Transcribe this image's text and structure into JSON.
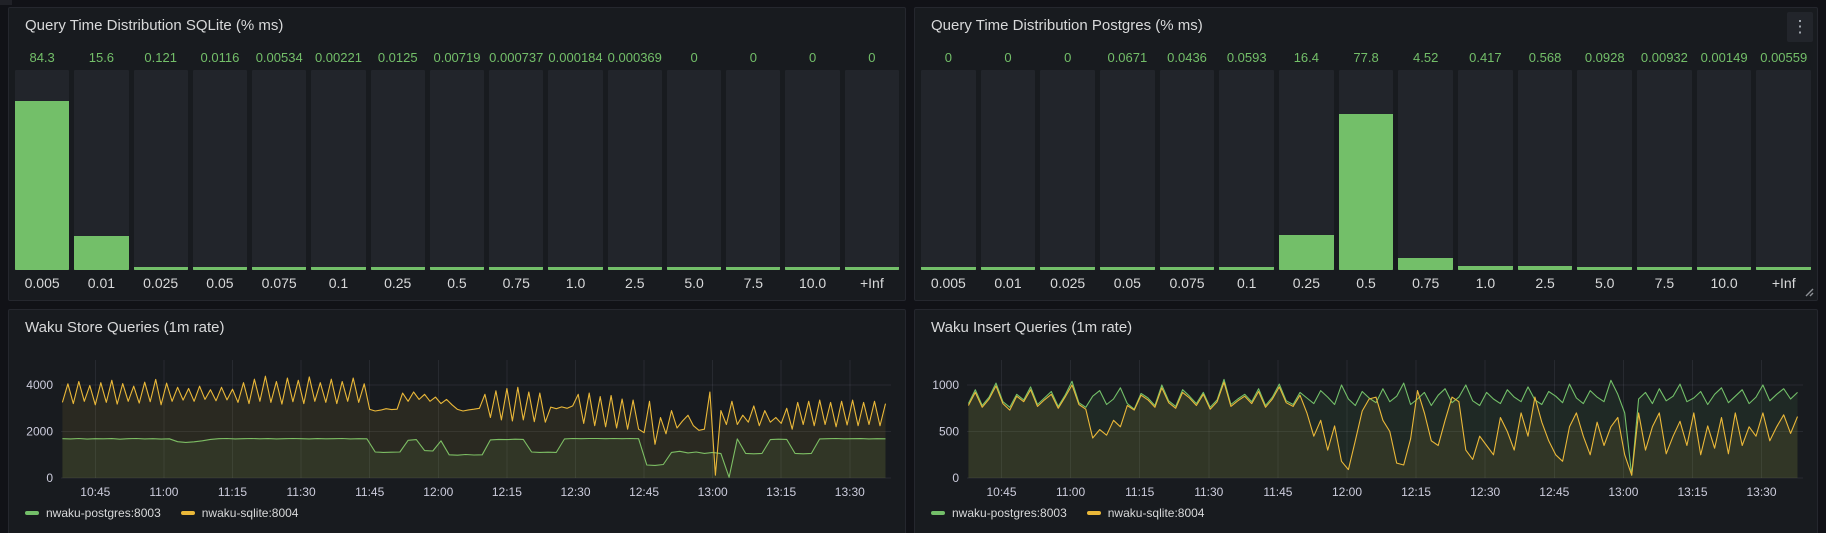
{
  "colors": {
    "green": "#73bf69",
    "yellow": "#eab839",
    "panel_bg": "#181b1f",
    "page_bg": "#111217",
    "text": "#d8d9da",
    "axis_text": "#ccccdc"
  },
  "kebab_menu": {
    "glyph": "⋮"
  },
  "panels": {
    "sqlite_dist": {
      "title": "Query Time Distribution SQLite (% ms)",
      "chart_data": {
        "type": "bar",
        "title": "Query Time Distribution SQLite (% ms)",
        "categories": [
          "0.005",
          "0.01",
          "0.025",
          "0.05",
          "0.075",
          "0.1",
          "0.25",
          "0.5",
          "0.75",
          "1.0",
          "2.5",
          "5.0",
          "7.5",
          "10.0",
          "+Inf"
        ],
        "values": [
          84.3,
          15.6,
          0.121,
          0.0116,
          0.00534,
          0.00221,
          0.0125,
          0.00719,
          0.000737,
          0.000184,
          0.000369,
          0,
          0,
          0,
          0
        ],
        "display_values": [
          "84.3",
          "15.6",
          "0.121",
          "0.0116",
          "0.00534",
          "0.00221",
          "0.0125",
          "0.00719",
          "0.000737",
          "0.000184",
          "0.000369",
          "0",
          "0",
          "0",
          "0"
        ],
        "ylim": [
          0,
          100
        ],
        "xlabel": "",
        "ylabel": ""
      }
    },
    "postgres_dist": {
      "title": "Query Time Distribution Postgres (% ms)",
      "chart_data": {
        "type": "bar",
        "title": "Query Time Distribution Postgres (% ms)",
        "categories": [
          "0.005",
          "0.01",
          "0.025",
          "0.05",
          "0.075",
          "0.1",
          "0.25",
          "0.5",
          "0.75",
          "1.0",
          "2.5",
          "5.0",
          "7.5",
          "10.0",
          "+Inf"
        ],
        "values": [
          0,
          0,
          0,
          0.0671,
          0.0436,
          0.0593,
          16.4,
          77.8,
          4.52,
          0.417,
          0.568,
          0.0928,
          0.00932,
          0.00149,
          0.00559
        ],
        "display_values": [
          "0",
          "0",
          "0",
          "0.0671",
          "0.0436",
          "0.0593",
          "16.4",
          "77.8",
          "4.52",
          "0.417",
          "0.568",
          "0.0928",
          "0.00932",
          "0.00149",
          "0.00559"
        ],
        "ylim": [
          0,
          100
        ],
        "xlabel": "",
        "ylabel": ""
      }
    },
    "store": {
      "title": "Waku Store Queries (1m rate)",
      "legend": [
        {
          "label": "nwaku-postgres:8003",
          "color": "#73bf69"
        },
        {
          "label": "nwaku-sqlite:8004",
          "color": "#eab839"
        }
      ],
      "chart_data": {
        "type": "line",
        "title": "Waku Store Queries (1m rate)",
        "y_ticks": [
          0,
          2000,
          4000
        ],
        "x_tick_labels": [
          "10:45",
          "11:00",
          "11:15",
          "11:30",
          "11:45",
          "12:00",
          "12:15",
          "12:30",
          "12:45",
          "13:00",
          "13:15",
          "13:30"
        ],
        "x_tick_minutes": [
          645,
          660,
          675,
          690,
          705,
          720,
          735,
          750,
          765,
          780,
          795,
          810
        ],
        "x_range": [
          637.5,
          819
        ],
        "grid": true,
        "legend_position": "bottom",
        "series": [
          {
            "name": "nwaku-postgres:8003",
            "color": "#73bf69",
            "t0": 637.8,
            "step": 1.8,
            "values": [
              1690,
              1680,
              1700,
              1675,
              1690,
              1685,
              1695,
              1670,
              1690,
              1700,
              1680,
              1690,
              1675,
              1685,
              1560,
              1530,
              1555,
              1600,
              1660,
              1690,
              1700,
              1680,
              1690,
              1700,
              1685,
              1695,
              1680,
              1690,
              1700,
              1690,
              1680,
              1695,
              1685,
              1690,
              1700,
              1680,
              1690,
              1685,
              1120,
              1100,
              1110,
              1120,
              1620,
              1650,
              1180,
              1160,
              1600,
              1000,
              980,
              1010,
              990,
              1000,
              1640,
              1660,
              1650,
              1670,
              1660,
              1120,
              1100,
              1110,
              1100,
              1680,
              1700,
              1690,
              1700,
              1700,
              1690,
              1700,
              1690,
              1700,
              1690,
              560,
              540,
              580,
              1100,
              1150,
              1080,
              1120,
              1060,
              1100,
              1050,
              30,
              1680,
              1060,
              1040,
              1060,
              1650,
              1670,
              1660,
              1060,
              1040,
              1060,
              1680,
              1690,
              1700,
              1685,
              1690,
              1695,
              1680,
              1690,
              1685
            ]
          },
          {
            "name": "nwaku-sqlite:8004",
            "color": "#eab839",
            "t0": 637.8,
            "step": 1.2,
            "values": [
              3250,
              4050,
              3200,
              4150,
              3300,
              3980,
              3150,
              4100,
              3250,
              4200,
              3180,
              4060,
              3300,
              3950,
              3220,
              4120,
              3280,
              4240,
              3150,
              4080,
              3300,
              3900,
              3350,
              3850,
              3300,
              3950,
              3380,
              3800,
              3320,
              3900,
              3360,
              3820,
              3250,
              4100,
              3200,
              4250,
              3300,
              4380,
              3250,
              4150,
              3180,
              4300,
              3280,
              4200,
              3200,
              4350,
              3300,
              4100,
              3250,
              4250,
              3200,
              4150,
              3300,
              4300,
              3250,
              4050,
              2950,
              2880,
              2920,
              2980,
              2940,
              2960,
              3650,
              3300,
              3700,
              3380,
              3600,
              3300,
              3480,
              3200,
              3380,
              3150,
              2950,
              2880,
              2930,
              2960,
              3000,
              3600,
              2600,
              3750,
              2500,
              3850,
              2450,
              3900,
              2500,
              3700,
              2420,
              3650,
              2400,
              3050,
              2980,
              3060,
              3000,
              3100,
              3600,
              2350,
              3650,
              2250,
              3500,
              2200,
              3550,
              2150,
              3400,
              2100,
              3350,
              2100,
              1950,
              3300,
              1450,
              2600,
              1900,
              2900,
              2150,
              2450,
              2700,
              2250,
              2050,
              2100,
              3700,
              120,
              2900,
              2300,
              3300,
              2300,
              2700,
              2400,
              3100,
              2250,
              2900,
              2400,
              2600,
              2350,
              3000,
              2100,
              3250,
              2300,
              3300,
              2250,
              3350,
              2300,
              3250,
              2200,
              3300,
              2280,
              3350,
              2250,
              3250,
              2300,
              3300,
              2250,
              3200
            ]
          }
        ]
      }
    },
    "insert": {
      "title": "Waku Insert Queries (1m rate)",
      "legend": [
        {
          "label": "nwaku-postgres:8003",
          "color": "#73bf69"
        },
        {
          "label": "nwaku-sqlite:8004",
          "color": "#eab839"
        }
      ],
      "chart_data": {
        "type": "line",
        "title": "Waku Insert Queries (1m rate)",
        "y_ticks": [
          0,
          500,
          1000
        ],
        "x_tick_labels": [
          "10:45",
          "11:00",
          "11:15",
          "11:30",
          "11:45",
          "12:00",
          "12:15",
          "12:30",
          "12:45",
          "13:00",
          "13:15",
          "13:30"
        ],
        "x_tick_minutes": [
          645,
          660,
          675,
          690,
          705,
          720,
          735,
          750,
          765,
          780,
          795,
          810
        ],
        "x_range": [
          637.5,
          819
        ],
        "grid": true,
        "legend_position": "bottom",
        "series": [
          {
            "name": "nwaku-postgres:8003",
            "color": "#73bf69",
            "t0": 637.8,
            "step": 1.5,
            "values": [
              800,
              950,
              780,
              870,
              1020,
              820,
              760,
              900,
              840,
              980,
              790,
              860,
              930,
              770,
              890,
              1040,
              810,
              760,
              880,
              940,
              790,
              850,
              970,
              800,
              740,
              910,
              860,
              780,
              1000,
              830,
              770,
              950,
              880,
              800,
              920,
              760,
              840,
              1060,
              790,
              850,
              900,
              820,
              960,
              780,
              870,
              1010,
              830,
              790,
              920,
              860,
              800,
              940,
              870,
              790,
              1000,
              850,
              780,
              930,
              860,
              810,
              960,
              820,
              880,
              1020,
              790,
              850,
              920,
              780,
              890,
              960,
              810,
              870,
              1000,
              830,
              780,
              920,
              850,
              800,
              950,
              870,
              820,
              980,
              840,
              790,
              930,
              880,
              810,
              1010,
              860,
              800,
              940,
              870,
              820,
              1050,
              900,
              700,
              30,
              850,
              920,
              800,
              960,
              830,
              880,
              1010,
              820,
              860,
              930,
              790,
              900,
              970,
              810,
              880,
              950,
              800,
              870,
              1000,
              830,
              900,
              960,
              850,
              920
            ]
          },
          {
            "name": "nwaku-sqlite:8004",
            "color": "#eab839",
            "t0": 637.8,
            "step": 1.5,
            "values": [
              780,
              920,
              760,
              850,
              990,
              800,
              730,
              880,
              820,
              950,
              770,
              840,
              900,
              750,
              870,
              1000,
              790,
              740,
              430,
              520,
              460,
              620,
              550,
              780,
              730,
              890,
              840,
              760,
              970,
              810,
              750,
              920,
              860,
              780,
              900,
              740,
              820,
              1030,
              770,
              830,
              880,
              800,
              930,
              760,
              850,
              980,
              810,
              770,
              890,
              700,
              450,
              620,
              300,
              560,
              180,
              90,
              400,
              720,
              850,
              870,
              620,
              500,
              160,
              140,
              420,
              940,
              700,
              400,
              350,
              620,
              870,
              820,
              300,
              200,
              450,
              350,
              250,
              650,
              500,
              300,
              700,
              450,
              870,
              600,
              400,
              250,
              180,
              550,
              700,
              450,
              250,
              600,
              350,
              550,
              650,
              250,
              30,
              700,
              300,
              550,
              700,
              260,
              450,
              610,
              350,
              700,
              250,
              560,
              320,
              650,
              260,
              700,
              350,
              550,
              450,
              700,
              400,
              550,
              680,
              480,
              660
            ]
          }
        ]
      }
    }
  }
}
